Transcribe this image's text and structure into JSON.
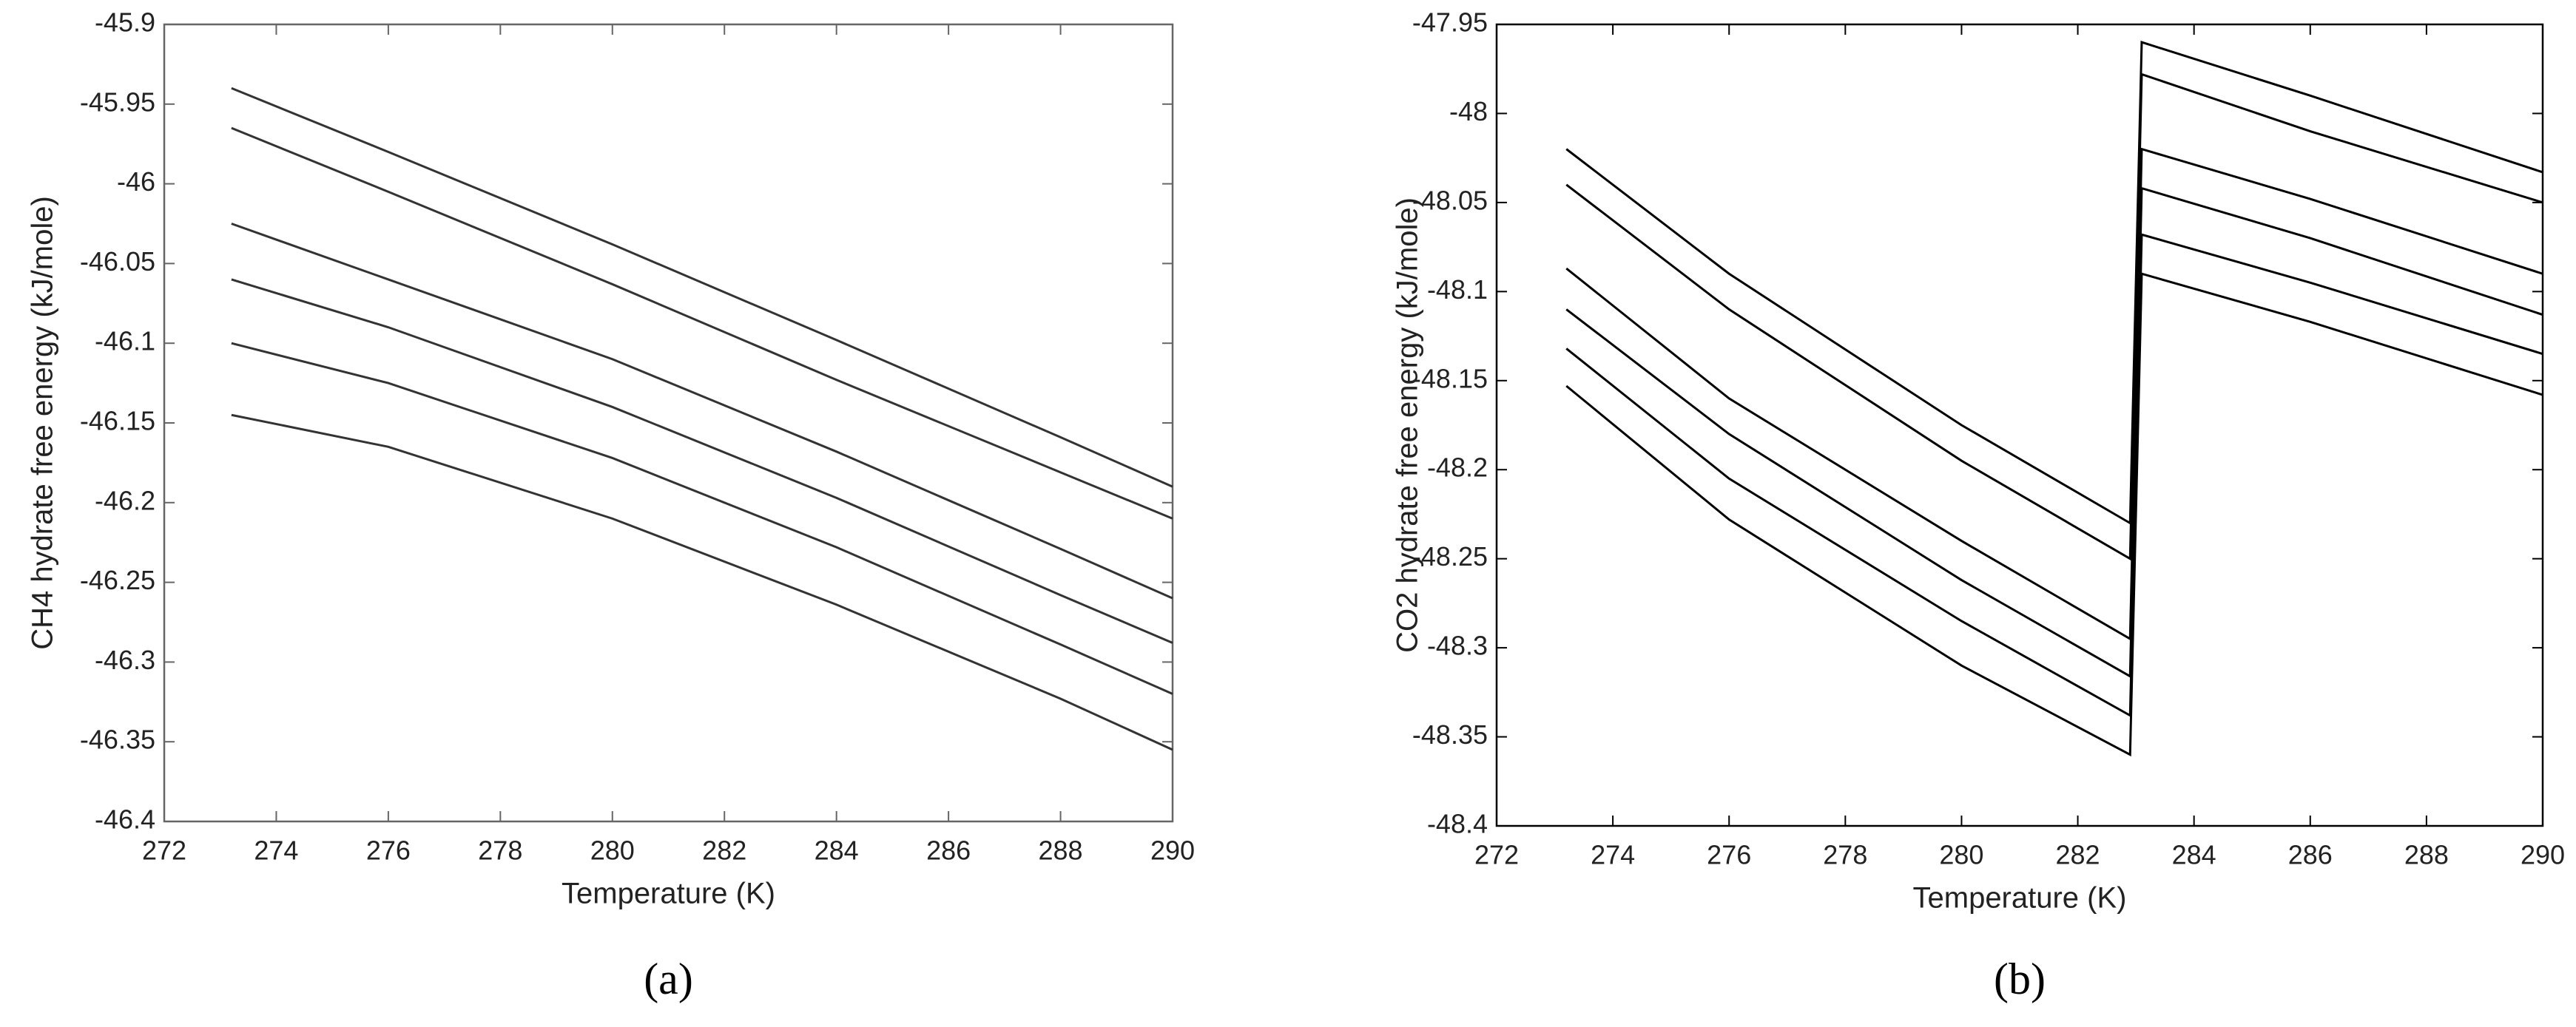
{
  "chart_data": [
    {
      "type": "line",
      "panel_label": "(a)",
      "xlabel": "Temperature (K)",
      "ylabel": "CH4 hydrate free energy (kJ/mole)",
      "x": [
        273.2,
        276,
        280,
        284,
        288,
        290
      ],
      "series": [
        {
          "color": "#333333",
          "values": [
            -45.94,
            -45.98,
            -46.038,
            -46.098,
            -46.159,
            -46.19
          ]
        },
        {
          "color": "#333333",
          "values": [
            -45.965,
            -46.005,
            -46.063,
            -46.123,
            -46.181,
            -46.21
          ]
        },
        {
          "color": "#333333",
          "values": [
            -46.025,
            -46.06,
            -46.11,
            -46.168,
            -46.229,
            -46.26
          ]
        },
        {
          "color": "#333333",
          "values": [
            -46.06,
            -46.09,
            -46.14,
            -46.197,
            -46.258,
            -46.288
          ]
        },
        {
          "color": "#333333",
          "values": [
            -46.1,
            -46.125,
            -46.172,
            -46.228,
            -46.289,
            -46.32
          ]
        },
        {
          "color": "#333333",
          "values": [
            -46.145,
            -46.165,
            -46.21,
            -46.264,
            -46.323,
            -46.355
          ]
        }
      ],
      "xlim": [
        272,
        290
      ],
      "xticks": [
        272,
        274,
        276,
        278,
        280,
        282,
        284,
        286,
        288,
        290
      ],
      "ylim": [
        -46.4,
        -45.9
      ],
      "yticks": [
        -46.4,
        -46.35,
        -46.3,
        -46.25,
        -46.2,
        -46.15,
        -46.1,
        -46.05,
        -46,
        -45.95,
        -45.9
      ]
    },
    {
      "type": "line",
      "panel_label": "(b)",
      "xlabel": "Temperature (K)",
      "ylabel": "CO2 hydrate free energy (kJ/mole)",
      "x": [
        273.2,
        276,
        280,
        282.9,
        283.1,
        286,
        290
      ],
      "series": [
        {
          "color": "#000000",
          "values": [
            -48.02,
            -48.09,
            -48.175,
            -48.23,
            -47.96,
            -47.99,
            -48.033
          ]
        },
        {
          "color": "#000000",
          "values": [
            -48.04,
            -48.11,
            -48.195,
            -48.25,
            -47.978,
            -48.01,
            -48.05
          ]
        },
        {
          "color": "#000000",
          "values": [
            -48.087,
            -48.16,
            -48.24,
            -48.295,
            -48.02,
            -48.048,
            -48.09
          ]
        },
        {
          "color": "#000000",
          "values": [
            -48.11,
            -48.18,
            -48.262,
            -48.316,
            -48.042,
            -48.07,
            -48.113
          ]
        },
        {
          "color": "#000000",
          "values": [
            -48.132,
            -48.205,
            -48.285,
            -48.338,
            -48.068,
            -48.095,
            -48.135
          ]
        },
        {
          "color": "#000000",
          "values": [
            -48.153,
            -48.228,
            -48.31,
            -48.36,
            -48.09,
            -48.117,
            -48.158
          ]
        }
      ],
      "xlim": [
        272,
        290
      ],
      "xticks": [
        272,
        274,
        276,
        278,
        280,
        282,
        284,
        286,
        288,
        290
      ],
      "ylim": [
        -48.4,
        -47.95
      ],
      "yticks": [
        -48.4,
        -48.35,
        -48.3,
        -48.25,
        -48.2,
        -48.15,
        -48.1,
        -48.05,
        -48,
        -47.95
      ]
    }
  ]
}
